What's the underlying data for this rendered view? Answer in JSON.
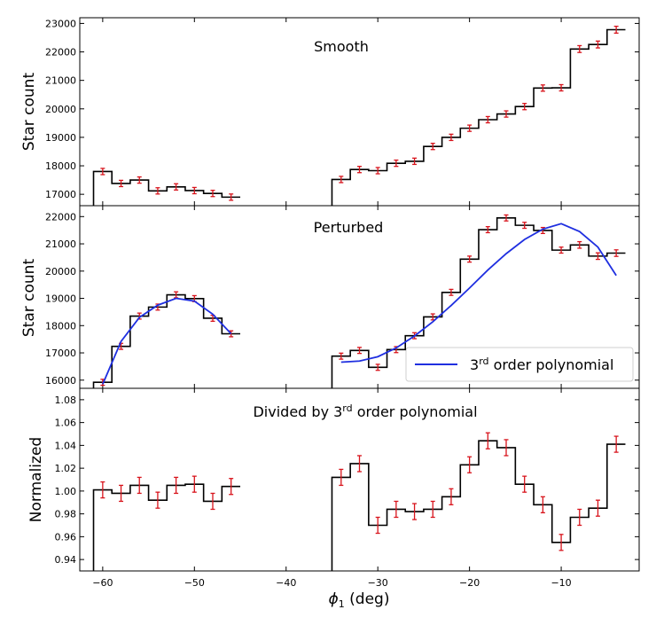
{
  "chart_data": [
    {
      "type": "line",
      "panel": "top",
      "title": "Smooth",
      "ylabel": "Star count",
      "ylim": [
        16600,
        23200
      ],
      "yticks": [
        17000,
        18000,
        19000,
        20000,
        21000,
        22000,
        23000
      ],
      "series": [
        {
          "style": "step-histogram-with-errorbars",
          "x": [
            -60,
            -58,
            -56,
            -54,
            -52,
            -50,
            -48,
            -46,
            -34,
            -32,
            -30,
            -28,
            -26,
            -24,
            -22,
            -20,
            -18,
            -16,
            -14,
            -12,
            -10,
            -8,
            -6,
            -4
          ],
          "y": [
            17800,
            17380,
            17500,
            17120,
            17260,
            17130,
            17030,
            16900,
            17520,
            17870,
            17830,
            18090,
            18160,
            18680,
            19000,
            19320,
            19620,
            19820,
            20080,
            20730,
            20740,
            22100,
            22260,
            22780
          ],
          "err": [
            110,
            110,
            110,
            110,
            110,
            110,
            110,
            110,
            110,
            110,
            110,
            110,
            110,
            110,
            110,
            110,
            110,
            110,
            110,
            110,
            110,
            120,
            120,
            120
          ]
        }
      ]
    },
    {
      "type": "line",
      "panel": "middle",
      "title": "Perturbed",
      "ylabel": "Star count",
      "ylim": [
        15700,
        22400
      ],
      "yticks": [
        16000,
        17000,
        18000,
        19000,
        20000,
        21000,
        22000
      ],
      "legend": {
        "text_main": "3",
        "text_sup": "rd",
        "text_rest": " order polynomial",
        "placement": "lower-right"
      },
      "series": [
        {
          "style": "step-histogram-with-errorbars",
          "x": [
            -60,
            -58,
            -56,
            -54,
            -52,
            -50,
            -48,
            -46,
            -34,
            -32,
            -30,
            -28,
            -26,
            -24,
            -22,
            -20,
            -18,
            -16,
            -14,
            -12,
            -10,
            -8,
            -6,
            -4
          ],
          "y": [
            15920,
            17240,
            18350,
            18680,
            19130,
            18990,
            18270,
            17700,
            16880,
            17090,
            16470,
            17120,
            17630,
            18320,
            19220,
            20440,
            21520,
            21950,
            21680,
            21490,
            20770,
            20960,
            20550,
            20660
          ],
          "err": [
            110,
            110,
            110,
            110,
            110,
            110,
            110,
            110,
            110,
            110,
            110,
            110,
            110,
            110,
            110,
            110,
            110,
            110,
            110,
            110,
            110,
            120,
            120,
            120
          ]
        },
        {
          "style": "smooth-line",
          "color": "#1f2fe0",
          "x": [
            -60,
            -58,
            -56,
            -54,
            -52,
            -50,
            -48,
            -46
          ],
          "y": [
            15850,
            17420,
            18300,
            18750,
            19000,
            18900,
            18420,
            17700
          ]
        },
        {
          "style": "smooth-line",
          "color": "#1f2fe0",
          "x": [
            -34,
            -32,
            -30,
            -28,
            -26,
            -24,
            -22,
            -20,
            -18,
            -16,
            -14,
            -12,
            -10,
            -8,
            -6,
            -4
          ],
          "y": [
            16660,
            16700,
            16860,
            17180,
            17620,
            18140,
            18740,
            19380,
            20040,
            20640,
            21160,
            21540,
            21740,
            21450,
            20880,
            19840
          ]
        }
      ]
    },
    {
      "type": "line",
      "panel": "bottom",
      "title_main": "Divided by 3",
      "title_sup": "rd",
      "title_rest": " order polynomial",
      "ylabel": "Normalized",
      "xlabel_sym": "ϕ",
      "xlabel_sub": "1",
      "xlabel_rest": " (deg)",
      "ylim": [
        0.93,
        1.09
      ],
      "yticks": [
        "0.94",
        "0.96",
        "0.98",
        "1.00",
        "1.02",
        "1.04",
        "1.06",
        "1.08"
      ],
      "xlim": [
        -62.5,
        -1.5
      ],
      "xticks": [
        -60,
        -50,
        -40,
        -30,
        -20,
        -10
      ],
      "xtick_labels": [
        "−60",
        "−50",
        "−40",
        "−30",
        "−20",
        "−10"
      ],
      "series": [
        {
          "style": "step-histogram-with-errorbars",
          "x": [
            -60,
            -58,
            -56,
            -54,
            -52,
            -50,
            -48,
            -46,
            -34,
            -32,
            -30,
            -28,
            -26,
            -24,
            -22,
            -20,
            -18,
            -16,
            -14,
            -12,
            -10,
            -8,
            -6,
            -4
          ],
          "y": [
            1.001,
            0.998,
            1.005,
            0.992,
            1.005,
            1.006,
            0.991,
            1.004,
            1.012,
            1.024,
            0.97,
            0.984,
            0.982,
            0.984,
            0.995,
            1.023,
            1.044,
            1.038,
            1.006,
            0.988,
            0.955,
            0.977,
            0.985,
            1.041
          ],
          "err": [
            0.007,
            0.007,
            0.007,
            0.007,
            0.007,
            0.007,
            0.007,
            0.007,
            0.007,
            0.007,
            0.007,
            0.007,
            0.007,
            0.007,
            0.007,
            0.007,
            0.007,
            0.007,
            0.007,
            0.007,
            0.007,
            0.007,
            0.007,
            0.007
          ]
        }
      ]
    }
  ]
}
